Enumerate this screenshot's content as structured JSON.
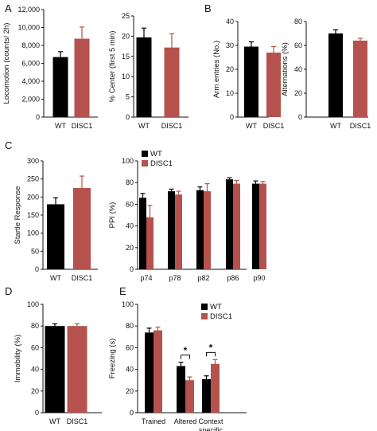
{
  "colors": {
    "WT": "#000000",
    "DISC1": "#b5524d",
    "axis": "#111111"
  },
  "panel_letters": [
    "A",
    "B",
    "C",
    "D",
    "E"
  ],
  "chart_data": [
    {
      "id": "locomotion",
      "panel": "A",
      "type": "bar",
      "categories": [
        "WT",
        "DISC1"
      ],
      "values": [
        6700,
        8750
      ],
      "errors": [
        600,
        1300
      ],
      "ylabel": "Locomotion (counts/ 2h)",
      "ylim": [
        0,
        12000
      ],
      "yticks": [
        "0",
        "2,000",
        "4,000",
        "6,000",
        "8,000",
        "10,000",
        "12,000"
      ]
    },
    {
      "id": "center",
      "panel": "A",
      "type": "bar",
      "categories": [
        "WT",
        "DISC1"
      ],
      "values": [
        19.7,
        17.2
      ],
      "errors": [
        2.3,
        3.4
      ],
      "ylabel": "% Center (first 5 min)",
      "ylim": [
        0,
        25
      ],
      "yticks": [
        "0",
        "5",
        "10",
        "15",
        "20",
        "25"
      ]
    },
    {
      "id": "arm",
      "panel": "B",
      "type": "bar",
      "categories": [
        "WT",
        "DISC1"
      ],
      "values": [
        29.5,
        27
      ],
      "errors": [
        2,
        2.5
      ],
      "ylabel": "Arm entries (No.)",
      "ylim": [
        0,
        40
      ],
      "yticks": [
        "0",
        "10",
        "20",
        "30",
        "40"
      ]
    },
    {
      "id": "alternations",
      "panel": "B",
      "type": "bar",
      "categories": [
        "WT",
        "DISC1"
      ],
      "values": [
        70,
        64
      ],
      "errors": [
        3,
        2
      ],
      "ylabel": "Alternations (%)",
      "ylim": [
        0,
        80
      ],
      "yticks": [
        "0",
        "20",
        "40",
        "60",
        "80"
      ]
    },
    {
      "id": "startle",
      "panel": "C",
      "type": "bar",
      "categories": [
        "WT",
        "DISC1"
      ],
      "values": [
        180,
        225
      ],
      "errors": [
        18,
        33
      ],
      "ylabel": "Startle Response",
      "ylim": [
        0,
        300
      ],
      "yticks": [
        "0",
        "50",
        "100",
        "150",
        "200",
        "250",
        "300"
      ]
    },
    {
      "id": "ppi",
      "panel": "C",
      "type": "bar",
      "categories": [
        "p74",
        "p78",
        "p82",
        "p86",
        "p90"
      ],
      "series": [
        {
          "name": "WT",
          "values": [
            66,
            72,
            73,
            83,
            79
          ],
          "errors": [
            4,
            2,
            3,
            1.5,
            2.5
          ]
        },
        {
          "name": "DISC1",
          "values": [
            48,
            69,
            72,
            79,
            79
          ],
          "errors": [
            11,
            3,
            7,
            3,
            2
          ]
        }
      ],
      "ylabel": "PPI (%)",
      "ylim": [
        0,
        100
      ],
      "yticks": [
        "0",
        "20",
        "40",
        "60",
        "80",
        "100"
      ],
      "legend": "top-left"
    },
    {
      "id": "immobility",
      "panel": "D",
      "type": "bar",
      "categories": [
        "WT",
        "DISC1"
      ],
      "values": [
        80,
        80
      ],
      "errors": [
        2,
        2
      ],
      "ylabel": "Immobility (%)",
      "ylim": [
        0,
        100
      ],
      "yticks": [
        "0",
        "20",
        "40",
        "60",
        "80",
        "100"
      ]
    },
    {
      "id": "freezing",
      "panel": "E",
      "type": "bar",
      "categories": [
        "Trained",
        "Altered",
        "Context specific"
      ],
      "category_lines": [
        [
          "Trained"
        ],
        [
          "Altered"
        ],
        [
          "Context",
          "specific"
        ]
      ],
      "series": [
        {
          "name": "WT",
          "values": [
            74,
            43,
            31
          ],
          "errors": [
            4,
            3.5,
            3
          ]
        },
        {
          "name": "DISC1",
          "values": [
            76,
            30,
            45
          ],
          "errors": [
            3,
            3,
            4
          ]
        }
      ],
      "significance": [
        "",
        "*",
        "*"
      ],
      "ylabel": "Freezing (s)",
      "ylim": [
        0,
        100
      ],
      "yticks": [
        "0",
        "20",
        "40",
        "60",
        "80",
        "100"
      ],
      "legend": "top-right"
    }
  ]
}
